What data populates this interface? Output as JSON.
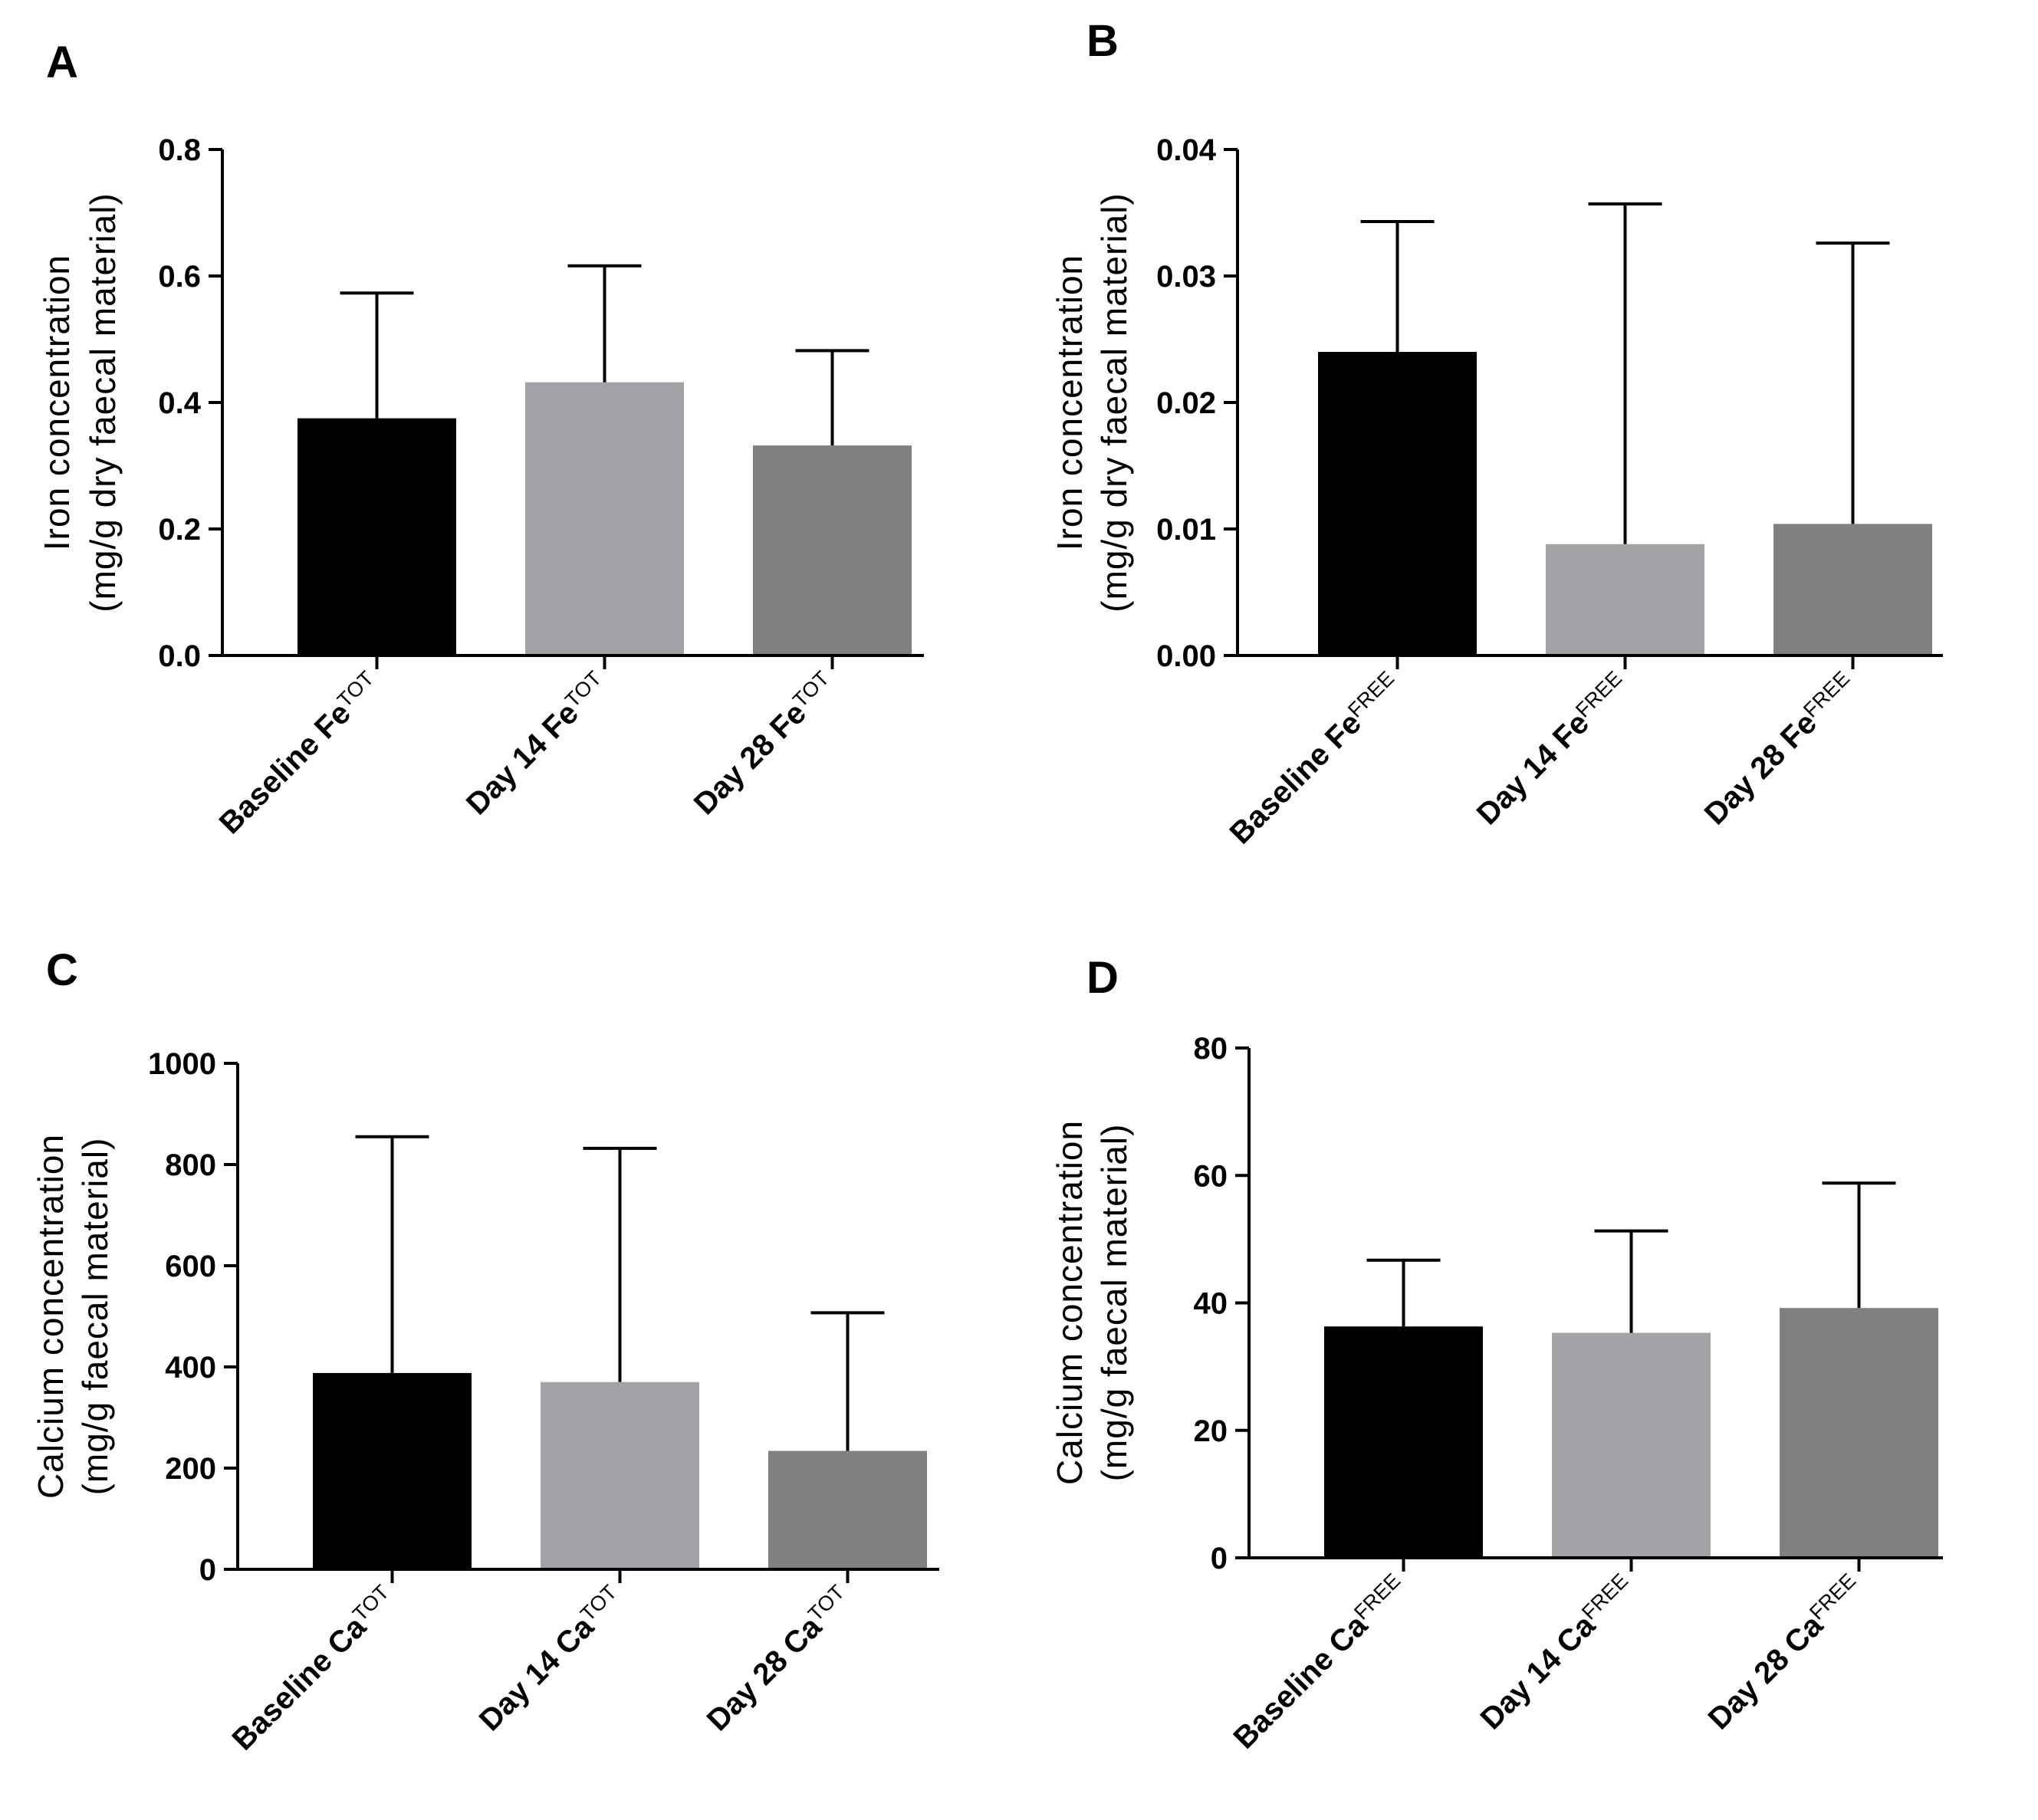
{
  "figure": {
    "panel_labels": [
      "A",
      "B",
      "C",
      "D"
    ]
  },
  "chart_data": [
    {
      "panel": "A",
      "type": "bar",
      "title": "",
      "xlabel": "",
      "ylabel_lines": [
        "Iron concentration",
        "(mg/g dry faecal material)"
      ],
      "categories": [
        {
          "main": "Baseline Fe",
          "sub": "TOT"
        },
        {
          "main": "Day 14 Fe",
          "sub": "TOT"
        },
        {
          "main": "Day 28 Fe",
          "sub": "TOT"
        }
      ],
      "values": [
        0.375,
        0.432,
        0.332
      ],
      "error_upper": [
        0.573,
        0.616,
        0.482
      ],
      "colors": [
        "#000000",
        "#a2a3a6",
        "#808080"
      ],
      "ylim": [
        0,
        0.8
      ],
      "yticks": [
        "0.0",
        "0.2",
        "0.4",
        "0.6",
        "0.8"
      ],
      "ytick_values": [
        0,
        0.2,
        0.4,
        0.6,
        0.8
      ],
      "grid": false
    },
    {
      "panel": "B",
      "type": "bar",
      "title": "",
      "xlabel": "",
      "ylabel_lines": [
        "Iron concentration",
        "(mg/g dry faecal material)"
      ],
      "categories": [
        {
          "main": "Baseline Fe",
          "sub": "FREE"
        },
        {
          "main": "Day 14 Fe",
          "sub": "FREE"
        },
        {
          "main": "Day 28 Fe",
          "sub": "FREE"
        }
      ],
      "values": [
        0.024,
        0.0088,
        0.0104
      ],
      "error_upper": [
        0.0343,
        0.0357,
        0.0326
      ],
      "colors": [
        "#000000",
        "#a2a3a6",
        "#808080"
      ],
      "ylim": [
        0,
        0.04
      ],
      "yticks": [
        "0.00",
        "0.01",
        "0.02",
        "0.03",
        "0.04"
      ],
      "ytick_values": [
        0,
        0.01,
        0.02,
        0.03,
        0.04
      ],
      "grid": false
    },
    {
      "panel": "C",
      "type": "bar",
      "title": "",
      "xlabel": "",
      "ylabel_lines": [
        "Calcium concentration",
        "(mg/g faecal material)"
      ],
      "categories": [
        {
          "main": "Baseline Ca",
          "sub": "TOT"
        },
        {
          "main": "Day 14 Ca",
          "sub": "TOT"
        },
        {
          "main": "Day 28 Ca",
          "sub": "TOT"
        }
      ],
      "values": [
        388,
        370,
        234
      ],
      "error_upper": [
        855,
        832,
        507
      ],
      "colors": [
        "#000000",
        "#a2a3a6",
        "#808080"
      ],
      "ylim": [
        0,
        1000
      ],
      "yticks": [
        "0",
        "200",
        "400",
        "600",
        "800",
        "1000"
      ],
      "ytick_values": [
        0,
        200,
        400,
        600,
        800,
        1000
      ],
      "grid": false
    },
    {
      "panel": "D",
      "type": "bar",
      "title": "",
      "xlabel": "",
      "ylabel_lines": [
        "Calcium concentration",
        "(mg/g faecal material)"
      ],
      "categories": [
        {
          "main": "Baseline Ca",
          "sub": "FREE"
        },
        {
          "main": "Day 14 Ca",
          "sub": "FREE"
        },
        {
          "main": "Day 28 Ca",
          "sub": "FREE"
        }
      ],
      "values": [
        36.3,
        35.3,
        39.2
      ],
      "error_upper": [
        46.7,
        51.3,
        58.8
      ],
      "colors": [
        "#000000",
        "#a2a3a6",
        "#808080"
      ],
      "ylim": [
        0,
        80
      ],
      "yticks": [
        "0",
        "20",
        "40",
        "60",
        "80"
      ],
      "ytick_values": [
        0,
        20,
        40,
        60,
        80
      ],
      "grid": false
    }
  ]
}
